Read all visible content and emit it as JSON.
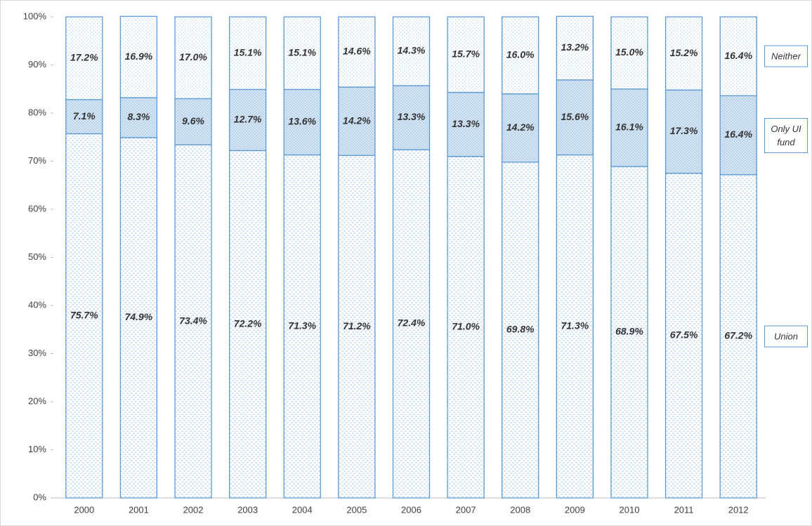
{
  "chart_data": {
    "type": "stacked_bar",
    "categories": [
      "2000",
      "2001",
      "2002",
      "2003",
      "2004",
      "2005",
      "2006",
      "2007",
      "2008",
      "2009",
      "2010",
      "2011",
      "2012"
    ],
    "series": [
      {
        "name": "Union",
        "color": "#5b9bd5",
        "values": [
          75.7,
          74.9,
          73.4,
          72.2,
          71.3,
          71.2,
          72.4,
          71.0,
          69.8,
          71.3,
          68.9,
          67.5,
          67.2
        ],
        "value_labels": [
          "75.7%",
          "74.9%",
          "73.4%",
          "72.2%",
          "71.3%",
          "71.2%",
          "72.4%",
          "71.0%",
          "69.8%",
          "71.3%",
          "68.9%",
          "67.5%",
          "67.2%"
        ]
      },
      {
        "name": "Only UI fund",
        "color": "#5b9bd5",
        "values": [
          7.1,
          8.3,
          9.6,
          12.7,
          13.6,
          14.2,
          13.3,
          13.3,
          14.2,
          15.6,
          16.1,
          17.3,
          16.4
        ],
        "value_labels": [
          "7.1%",
          "8.3%",
          "9.6%",
          "12.7%",
          "13.6%",
          "14.2%",
          "13.3%",
          "13.3%",
          "14.2%",
          "15.6%",
          "16.1%",
          "17.3%",
          "16.4%"
        ]
      },
      {
        "name": "Neither",
        "color": "#5b9bd5",
        "values": [
          17.2,
          16.9,
          17.0,
          15.1,
          15.1,
          14.6,
          14.3,
          15.7,
          16.0,
          13.2,
          15.0,
          15.2,
          16.4
        ],
        "value_labels": [
          "17.2%",
          "16.9%",
          "17.0%",
          "15.1%",
          "15.1%",
          "14.6%",
          "14.3%",
          "15.7%",
          "16.0%",
          "13.2%",
          "15.0%",
          "15.2%",
          "16.4%"
        ]
      }
    ],
    "ylim": [
      0,
      100
    ],
    "yticks": [
      {
        "value": 0,
        "label": "0%"
      },
      {
        "value": 10,
        "label": "10%"
      },
      {
        "value": 20,
        "label": "20%"
      },
      {
        "value": 30,
        "label": "30%"
      },
      {
        "value": 40,
        "label": "40%"
      },
      {
        "value": 50,
        "label": "50%"
      },
      {
        "value": 60,
        "label": "60%"
      },
      {
        "value": 70,
        "label": "70%"
      },
      {
        "value": 80,
        "label": "80%"
      },
      {
        "value": 90,
        "label": "90%"
      },
      {
        "value": 100,
        "label": "100%"
      }
    ],
    "legend": "right"
  }
}
